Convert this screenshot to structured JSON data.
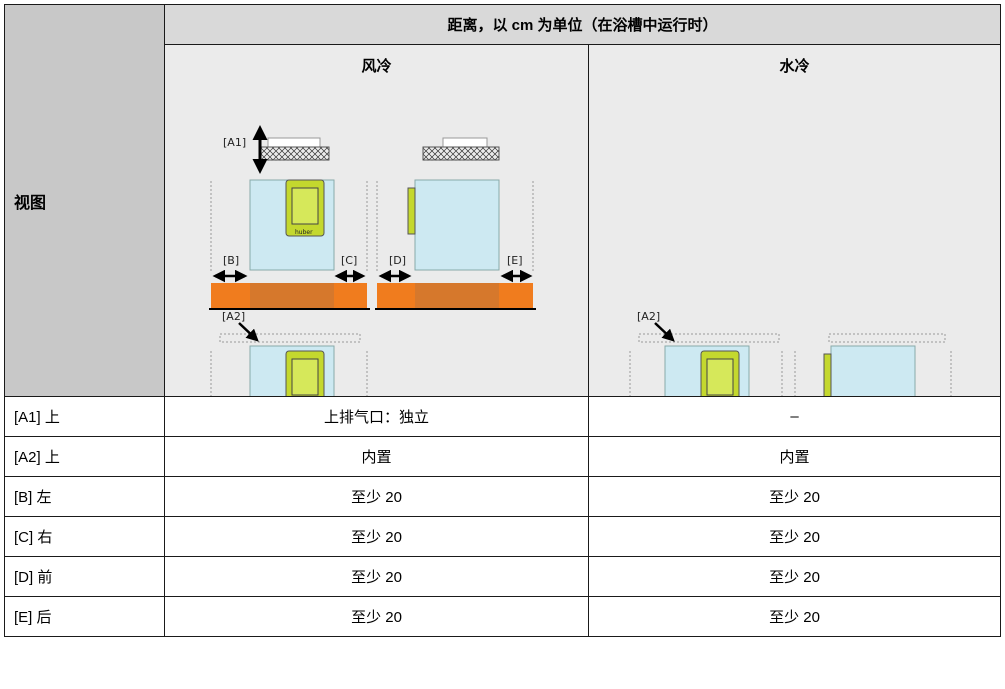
{
  "table": {
    "view_label": "视图",
    "distance_header": "距离，以 cm 为单位（在浴槽中运行时）",
    "air_cooled_label": "风冷",
    "water_cooled_label": "水冷",
    "rows": [
      {
        "label": "[A1] 上",
        "air": "上排气口：独立",
        "water": "–"
      },
      {
        "label": "[A2] 上",
        "air": "内置",
        "water": "内置"
      },
      {
        "label": "[B] 左",
        "air": "至少 20",
        "water": "至少 20"
      },
      {
        "label": "[C] 右",
        "air": "至少 20",
        "water": "至少 20"
      },
      {
        "label": "[D] 前",
        "air": "至少 20",
        "water": "至少 20"
      },
      {
        "label": "[E] 后",
        "air": "至少 20",
        "water": "至少 20"
      }
    ]
  },
  "diagram_labels": {
    "a1": "[A1]",
    "a2": "[A2]",
    "b": "[B]",
    "c": "[C]",
    "d": "[D]",
    "e": "[E]",
    "logo": "huber"
  },
  "colors": {
    "unit_body": "#cde9f2",
    "control_panel": "#c4d82e",
    "base": "#f07c1e",
    "base_center": "#d6782c",
    "header_bg": "#d9d9d9",
    "figure_bg": "#ebebeb"
  }
}
